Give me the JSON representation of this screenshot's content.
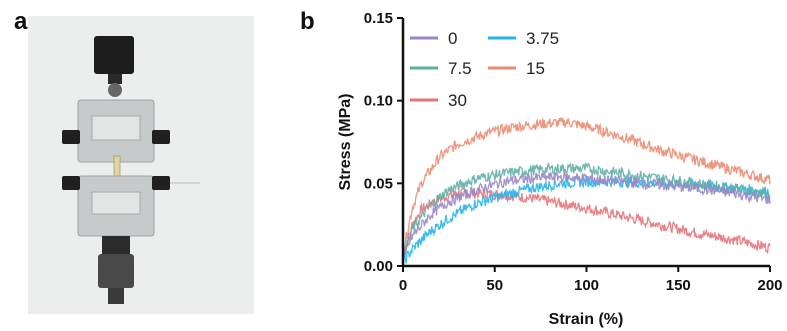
{
  "figure": {
    "panel_a_label": "a",
    "panel_b_label": "b"
  },
  "colors": {
    "series_0": "#9a86c6",
    "series_3_75": "#27b4e8",
    "series_7_5": "#5fafa6",
    "series_15": "#ea8c72",
    "series_30": "#e57479",
    "photo_background": "#eceeed",
    "clamp_body": "#c9cccc",
    "knob": "#222222"
  },
  "chart_data": {
    "type": "line",
    "xlabel": "Strain (%)",
    "ylabel": "Stress (MPa)",
    "xlim": [
      0,
      200
    ],
    "ylim": [
      0,
      0.15
    ],
    "x_ticks": [
      "0",
      "50",
      "100",
      "150",
      "200"
    ],
    "y_ticks": [
      "0.00",
      "0.05",
      "0.10",
      "0.15"
    ],
    "legend_placement": "top-left",
    "grid": false,
    "series": [
      {
        "name": "0",
        "color": "#9a86c6",
        "x": [
          0,
          5,
          15,
          25,
          40,
          55,
          70,
          85,
          100,
          120,
          140,
          160,
          180,
          200
        ],
        "y": [
          0.005,
          0.018,
          0.031,
          0.039,
          0.046,
          0.051,
          0.053,
          0.054,
          0.053,
          0.051,
          0.049,
          0.047,
          0.044,
          0.04
        ]
      },
      {
        "name": "3.75",
        "color": "#27b4e8",
        "x": [
          0,
          5,
          15,
          25,
          40,
          55,
          70,
          85,
          100,
          120,
          140,
          160,
          180,
          200
        ],
        "y": [
          0.002,
          0.01,
          0.021,
          0.029,
          0.038,
          0.043,
          0.047,
          0.05,
          0.051,
          0.051,
          0.05,
          0.049,
          0.047,
          0.045
        ]
      },
      {
        "name": "7.5",
        "color": "#5fafa6",
        "x": [
          0,
          5,
          15,
          25,
          40,
          55,
          70,
          85,
          100,
          120,
          140,
          160,
          180,
          200
        ],
        "y": [
          0.006,
          0.022,
          0.037,
          0.046,
          0.053,
          0.056,
          0.058,
          0.059,
          0.059,
          0.056,
          0.053,
          0.05,
          0.047,
          0.043
        ]
      },
      {
        "name": "15",
        "color": "#ea8c72",
        "x": [
          0,
          5,
          10,
          20,
          30,
          45,
          60,
          75,
          90,
          105,
          120,
          140,
          160,
          180,
          200
        ],
        "y": [
          0.008,
          0.035,
          0.05,
          0.066,
          0.074,
          0.08,
          0.084,
          0.086,
          0.087,
          0.083,
          0.078,
          0.07,
          0.064,
          0.058,
          0.052
        ]
      },
      {
        "name": "30",
        "color": "#e57479",
        "x": [
          0,
          5,
          10,
          20,
          30,
          40,
          55,
          70,
          85,
          100,
          120,
          140,
          160,
          180,
          200
        ],
        "y": [
          0.005,
          0.025,
          0.034,
          0.041,
          0.044,
          0.044,
          0.043,
          0.041,
          0.038,
          0.035,
          0.03,
          0.025,
          0.02,
          0.016,
          0.011
        ]
      }
    ]
  }
}
